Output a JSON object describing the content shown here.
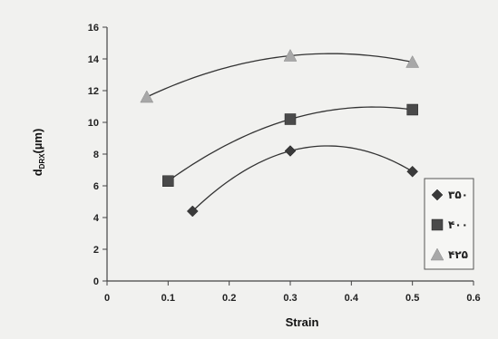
{
  "chart_data": {
    "type": "scatter",
    "xlabel": "Strain",
    "ylabel_main": "d",
    "ylabel_sub": "DRX",
    "ylabel_unit": "(µm)",
    "xlim": [
      0,
      0.6
    ],
    "ylim": [
      0,
      16
    ],
    "x_ticks": [
      0,
      0.1,
      0.2,
      0.3,
      0.4,
      0.5,
      0.6
    ],
    "x_tick_labels": [
      "0",
      "0.1",
      "0.2",
      "0.3",
      "0.4",
      "0.5",
      "0.6"
    ],
    "y_ticks": [
      0,
      2,
      4,
      6,
      8,
      10,
      12,
      14,
      16
    ],
    "y_tick_labels": [
      "0",
      "2",
      "4",
      "6",
      "8",
      "10",
      "12",
      "14",
      "16"
    ],
    "grid": false,
    "legend_position": "right",
    "series": [
      {
        "name": "۳۵۰",
        "marker": "diamond",
        "color": "#3a3a3a",
        "x": [
          0.14,
          0.3,
          0.5
        ],
        "y": [
          4.4,
          8.2,
          6.9
        ]
      },
      {
        "name": "۴۰۰",
        "marker": "square",
        "color": "#4a4a4a",
        "x": [
          0.1,
          0.3,
          0.5
        ],
        "y": [
          6.3,
          10.2,
          10.8
        ]
      },
      {
        "name": "۴۲۵",
        "marker": "triangle",
        "color": "#a8a8a8",
        "x": [
          0.065,
          0.3,
          0.5
        ],
        "y": [
          11.6,
          14.2,
          13.8
        ]
      }
    ]
  }
}
